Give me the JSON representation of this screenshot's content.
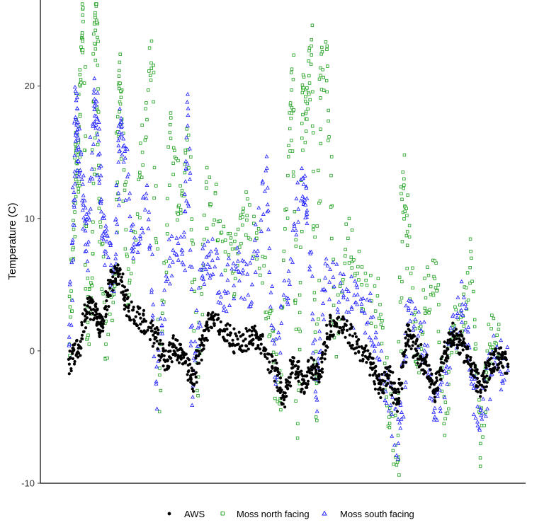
{
  "chart_data": {
    "type": "scatter",
    "title": "",
    "xlabel": "",
    "ylabel": "Temperature (C)",
    "ylim": [
      -10,
      26.5
    ],
    "yticks": [
      -10,
      0,
      10,
      20
    ],
    "grid": false,
    "legend_position": "bottom",
    "series": [
      {
        "name": "AWS",
        "marker": "filled-circle",
        "color": "#000000",
        "key_points": [
          {
            "x": 0.02,
            "y": -1.0
          },
          {
            "x": 0.04,
            "y": 0.2
          },
          {
            "x": 0.06,
            "y": 3.4
          },
          {
            "x": 0.08,
            "y": 2.8
          },
          {
            "x": 0.09,
            "y": 1.5
          },
          {
            "x": 0.11,
            "y": 5.2
          },
          {
            "x": 0.13,
            "y": 5.8
          },
          {
            "x": 0.15,
            "y": 3.0
          },
          {
            "x": 0.18,
            "y": 2.2
          },
          {
            "x": 0.21,
            "y": 1.0
          },
          {
            "x": 0.23,
            "y": -0.8
          },
          {
            "x": 0.25,
            "y": 0.4
          },
          {
            "x": 0.27,
            "y": -0.5
          },
          {
            "x": 0.29,
            "y": -2.5
          },
          {
            "x": 0.31,
            "y": 0.6
          },
          {
            "x": 0.33,
            "y": 2.5
          },
          {
            "x": 0.36,
            "y": 1.5
          },
          {
            "x": 0.39,
            "y": 0.5
          },
          {
            "x": 0.42,
            "y": 1.2
          },
          {
            "x": 0.44,
            "y": 0.5
          },
          {
            "x": 0.47,
            "y": -1.5
          },
          {
            "x": 0.49,
            "y": -3.5
          },
          {
            "x": 0.51,
            "y": -0.8
          },
          {
            "x": 0.53,
            "y": -2.5
          },
          {
            "x": 0.55,
            "y": -1.2
          },
          {
            "x": 0.57,
            "y": -1.5
          },
          {
            "x": 0.59,
            "y": 2.0
          },
          {
            "x": 0.62,
            "y": 1.8
          },
          {
            "x": 0.65,
            "y": 0.5
          },
          {
            "x": 0.68,
            "y": -1.0
          },
          {
            "x": 0.7,
            "y": -2.8
          },
          {
            "x": 0.72,
            "y": -1.5
          },
          {
            "x": 0.74,
            "y": -4.0
          },
          {
            "x": 0.76,
            "y": 1.2
          },
          {
            "x": 0.78,
            "y": 0.0
          },
          {
            "x": 0.8,
            "y": -1.0
          },
          {
            "x": 0.82,
            "y": -3.5
          },
          {
            "x": 0.84,
            "y": -0.2
          },
          {
            "x": 0.86,
            "y": 1.2
          },
          {
            "x": 0.88,
            "y": 0.4
          },
          {
            "x": 0.9,
            "y": -1.0
          },
          {
            "x": 0.92,
            "y": -3.0
          },
          {
            "x": 0.94,
            "y": -1.0
          },
          {
            "x": 0.96,
            "y": -0.5
          },
          {
            "x": 0.98,
            "y": -1.0
          }
        ]
      },
      {
        "name": "Moss north facing",
        "marker": "open-square",
        "color": "#1a9e1a",
        "key_points": [
          {
            "x": 0.02,
            "y": 0.5
          },
          {
            "x": 0.03,
            "y": 9.5
          },
          {
            "x": 0.035,
            "y": 17.5
          },
          {
            "x": 0.04,
            "y": 12.0
          },
          {
            "x": 0.045,
            "y": 20.5
          },
          {
            "x": 0.05,
            "y": 25.9
          },
          {
            "x": 0.06,
            "y": 1.0
          },
          {
            "x": 0.07,
            "y": 5.5
          },
          {
            "x": 0.075,
            "y": 23.2
          },
          {
            "x": 0.08,
            "y": 24.8
          },
          {
            "x": 0.085,
            "y": 11.5
          },
          {
            "x": 0.1,
            "y": 0.5
          },
          {
            "x": 0.12,
            "y": 5.8
          },
          {
            "x": 0.13,
            "y": 21.8
          },
          {
            "x": 0.135,
            "y": 17.5
          },
          {
            "x": 0.15,
            "y": 3.5
          },
          {
            "x": 0.18,
            "y": 15.0
          },
          {
            "x": 0.2,
            "y": 23.4
          },
          {
            "x": 0.22,
            "y": -3.0
          },
          {
            "x": 0.24,
            "y": 16.5
          },
          {
            "x": 0.26,
            "y": 11.0
          },
          {
            "x": 0.28,
            "y": 15.2
          },
          {
            "x": 0.3,
            "y": -3.0
          },
          {
            "x": 0.32,
            "y": 12.3
          },
          {
            "x": 0.35,
            "y": 9.8
          },
          {
            "x": 0.38,
            "y": 6.0
          },
          {
            "x": 0.4,
            "y": 10.5
          },
          {
            "x": 0.43,
            "y": 8.5
          },
          {
            "x": 0.46,
            "y": 3.0
          },
          {
            "x": 0.48,
            "y": -4.0
          },
          {
            "x": 0.5,
            "y": 15.5
          },
          {
            "x": 0.51,
            "y": 20.5
          },
          {
            "x": 0.52,
            "y": -5.5
          },
          {
            "x": 0.53,
            "y": 19.5
          },
          {
            "x": 0.54,
            "y": 17.5
          },
          {
            "x": 0.55,
            "y": 23.5
          },
          {
            "x": 0.56,
            "y": -5.0
          },
          {
            "x": 0.57,
            "y": 20.8
          },
          {
            "x": 0.585,
            "y": 21.5
          },
          {
            "x": 0.6,
            "y": 1.0
          },
          {
            "x": 0.63,
            "y": 8.5
          },
          {
            "x": 0.66,
            "y": 5.0
          },
          {
            "x": 0.7,
            "y": 3.5
          },
          {
            "x": 0.72,
            "y": -5.0
          },
          {
            "x": 0.74,
            "y": -8.0
          },
          {
            "x": 0.75,
            "y": 13.5
          },
          {
            "x": 0.76,
            "y": 9.0
          },
          {
            "x": 0.78,
            "y": -1.0
          },
          {
            "x": 0.8,
            "y": 4.0
          },
          {
            "x": 0.82,
            "y": 6.8
          },
          {
            "x": 0.84,
            "y": -5.5
          },
          {
            "x": 0.86,
            "y": 2.0
          },
          {
            "x": 0.88,
            "y": 1.5
          },
          {
            "x": 0.9,
            "y": 7.0
          },
          {
            "x": 0.92,
            "y": -7.0
          },
          {
            "x": 0.94,
            "y": 0.5
          },
          {
            "x": 0.96,
            "y": 2.0
          }
        ]
      },
      {
        "name": "Moss south facing",
        "marker": "open-triangle",
        "color": "#1a1aff",
        "key_points": [
          {
            "x": 0.02,
            "y": 0.5
          },
          {
            "x": 0.03,
            "y": 11.0
          },
          {
            "x": 0.035,
            "y": 18.9
          },
          {
            "x": 0.04,
            "y": 15.4
          },
          {
            "x": 0.05,
            "y": 11.1
          },
          {
            "x": 0.06,
            "y": 8.0
          },
          {
            "x": 0.075,
            "y": 19.0
          },
          {
            "x": 0.08,
            "y": 17.5
          },
          {
            "x": 0.09,
            "y": 10.5
          },
          {
            "x": 0.1,
            "y": 7.5
          },
          {
            "x": 0.12,
            "y": 6.0
          },
          {
            "x": 0.13,
            "y": 16.5
          },
          {
            "x": 0.14,
            "y": 15.5
          },
          {
            "x": 0.16,
            "y": 7.0
          },
          {
            "x": 0.19,
            "y": 12.5
          },
          {
            "x": 0.21,
            "y": -2.5
          },
          {
            "x": 0.24,
            "y": 7.0
          },
          {
            "x": 0.27,
            "y": 6.5
          },
          {
            "x": 0.28,
            "y": 18.3
          },
          {
            "x": 0.29,
            "y": -3.5
          },
          {
            "x": 0.31,
            "y": 5.5
          },
          {
            "x": 0.33,
            "y": 7.5
          },
          {
            "x": 0.36,
            "y": 4.5
          },
          {
            "x": 0.39,
            "y": 6.0
          },
          {
            "x": 0.42,
            "y": 5.0
          },
          {
            "x": 0.45,
            "y": 13.6
          },
          {
            "x": 0.47,
            "y": -2.0
          },
          {
            "x": 0.5,
            "y": 6.0
          },
          {
            "x": 0.53,
            "y": 13.0
          },
          {
            "x": 0.54,
            "y": 11.5
          },
          {
            "x": 0.56,
            "y": -3.5
          },
          {
            "x": 0.58,
            "y": 5.5
          },
          {
            "x": 0.62,
            "y": 4.0
          },
          {
            "x": 0.65,
            "y": 3.5
          },
          {
            "x": 0.68,
            "y": 2.5
          },
          {
            "x": 0.71,
            "y": -2.5
          },
          {
            "x": 0.74,
            "y": -7.0
          },
          {
            "x": 0.76,
            "y": 2.0
          },
          {
            "x": 0.79,
            "y": 1.5
          },
          {
            "x": 0.82,
            "y": -5.0
          },
          {
            "x": 0.85,
            "y": 0.5
          },
          {
            "x": 0.88,
            "y": 3.5
          },
          {
            "x": 0.9,
            "y": -2.5
          },
          {
            "x": 0.92,
            "y": -4.5
          },
          {
            "x": 0.95,
            "y": -0.5
          },
          {
            "x": 0.98,
            "y": -1.5
          }
        ]
      }
    ]
  }
}
